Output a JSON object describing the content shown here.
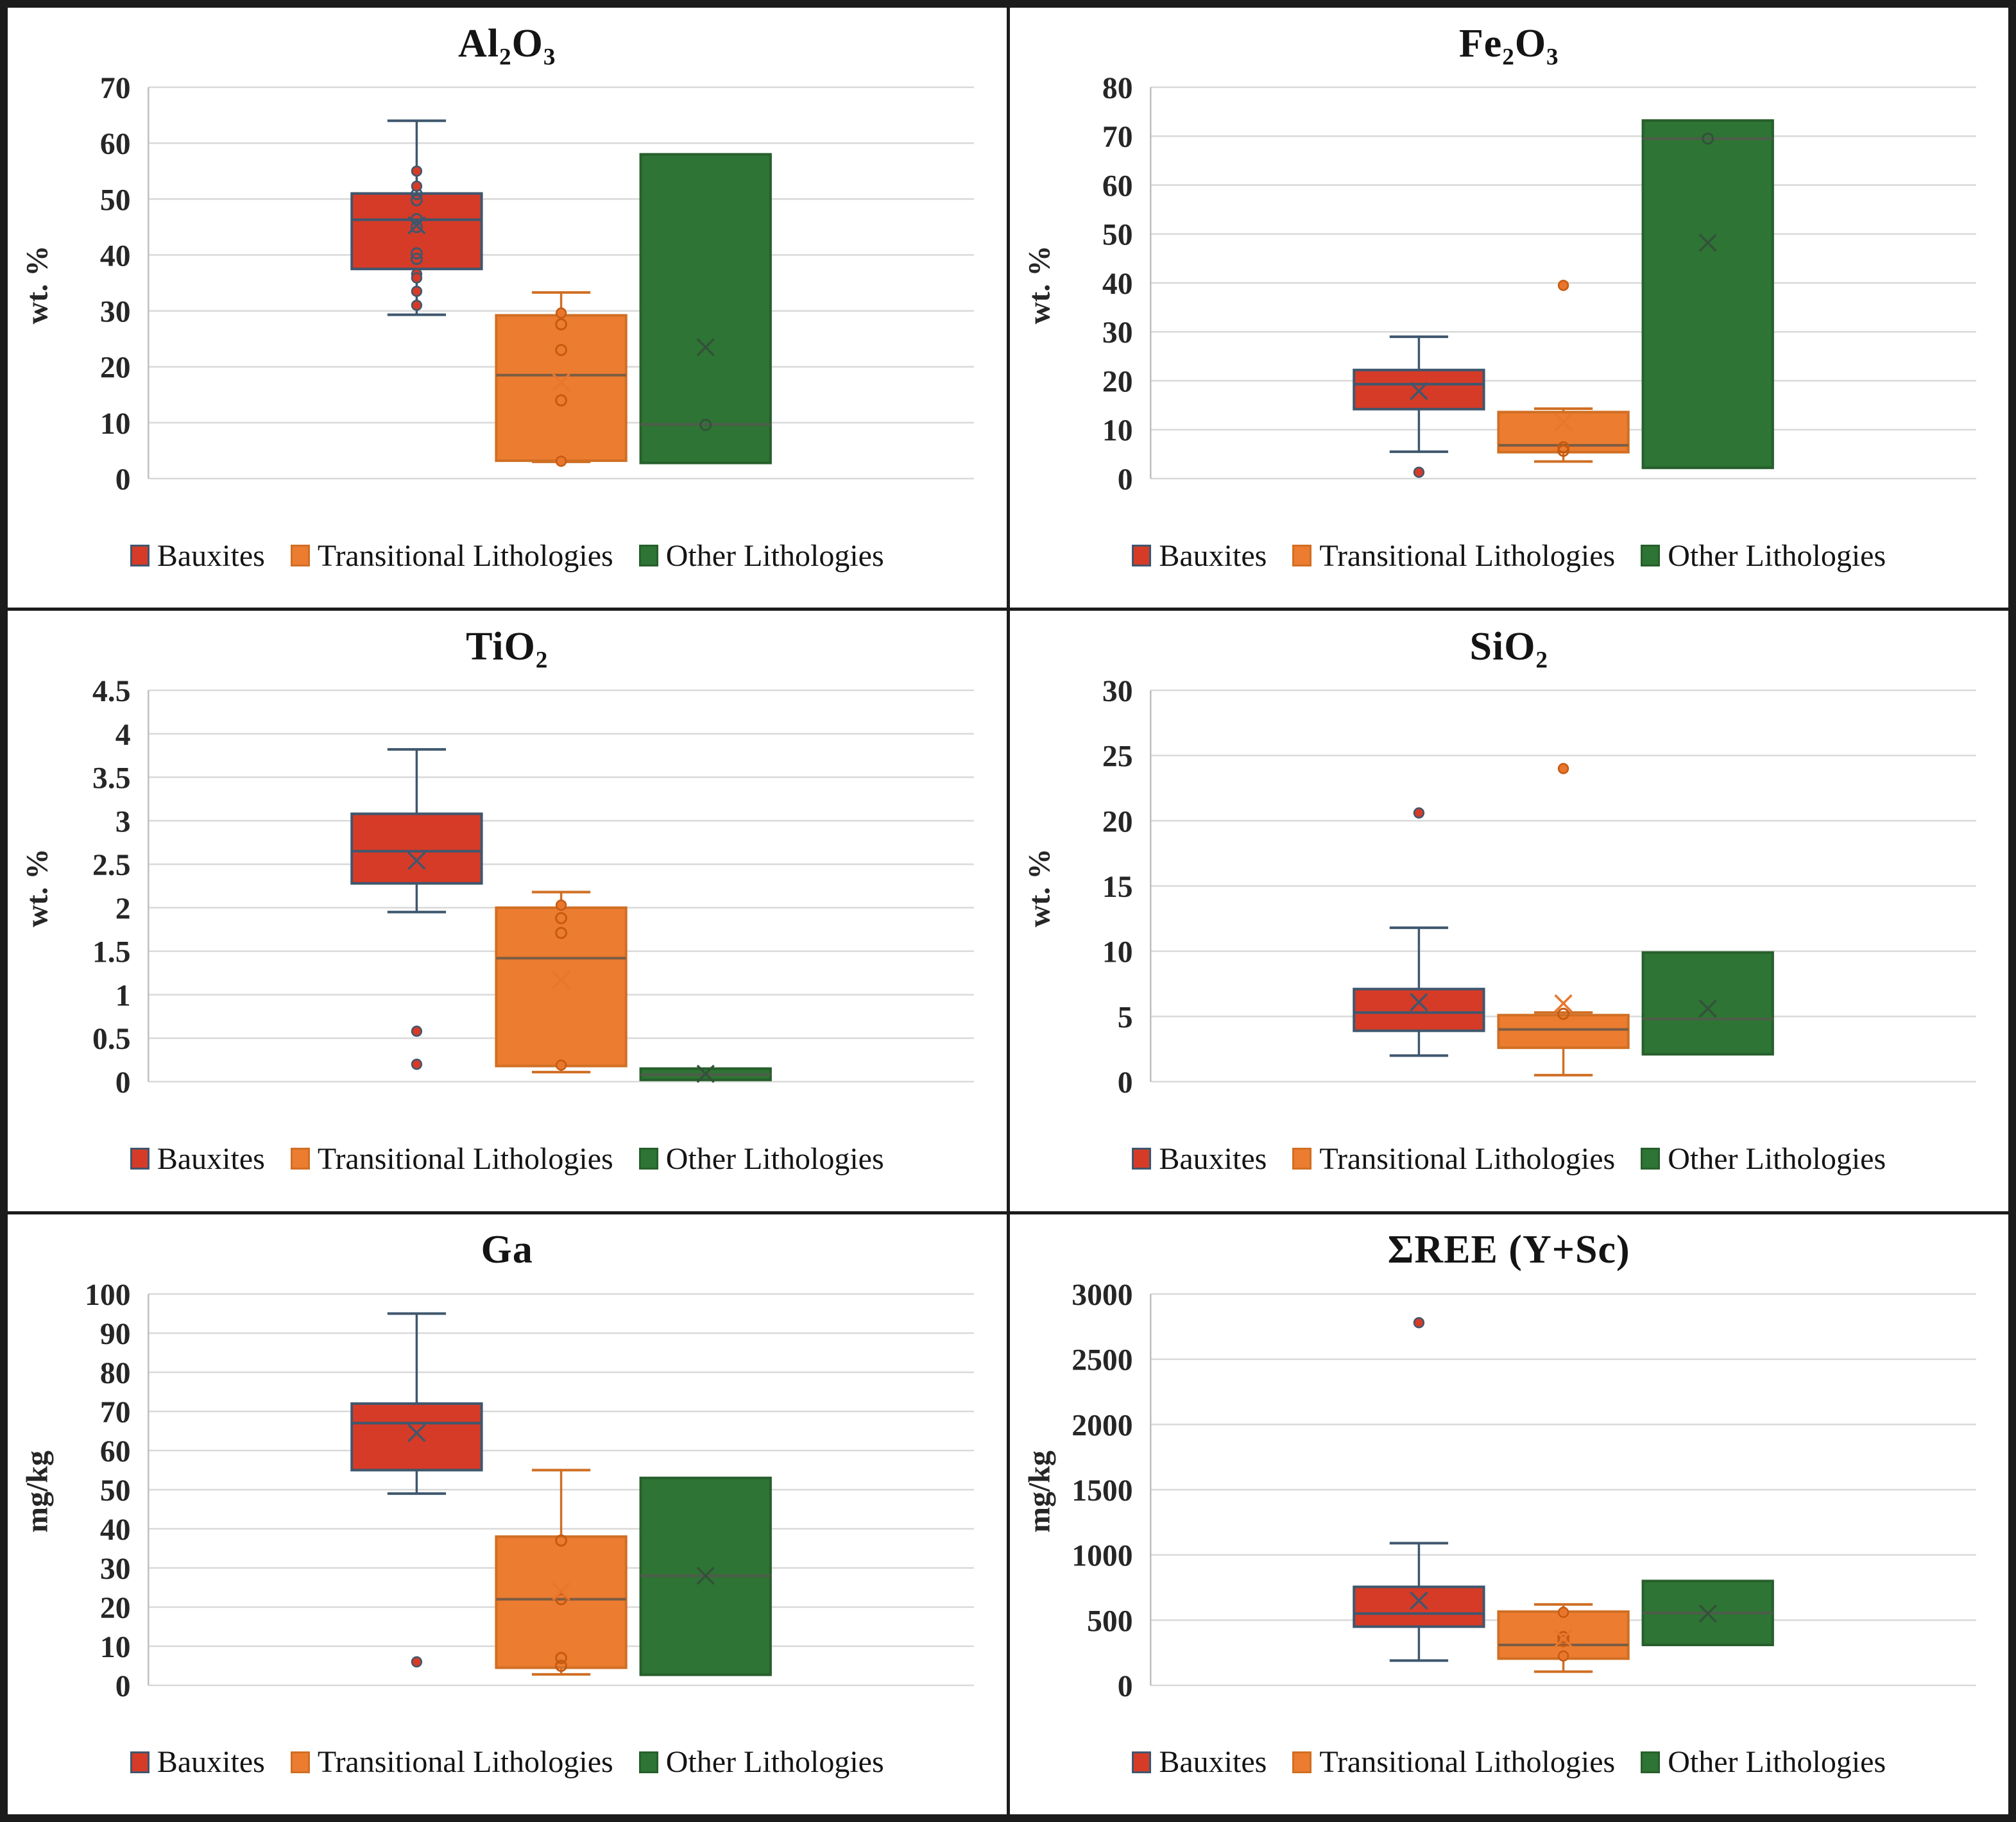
{
  "legend": {
    "items": [
      {
        "label": "Bauxites",
        "fill": "#d63b27",
        "edge": "#3f576e",
        "median": "#3f576e",
        "mean": "#3f576e",
        "point_fill": "#d63b27",
        "point_edge": "#3f576e"
      },
      {
        "label": "Transitional Lithologies",
        "fill": "#ec7c30",
        "edge": "#d06f24",
        "median": "#7a5c44",
        "mean": "#e8762c",
        "point_fill": "#e8762c",
        "point_edge": "#c55a11"
      },
      {
        "label": "Other Lithologies",
        "fill": "#2e7434",
        "edge": "#275f2c",
        "median": "#4f5b4b",
        "mean": "#33523a",
        "point_fill": "#2e7434",
        "point_edge": "#33523a"
      }
    ]
  },
  "style_colors": {
    "gridline": "#d9d9d9",
    "axis_line": "#bfbfbf",
    "tick_text": "#262626",
    "frame": "#1c1c1c"
  },
  "chart_data": [
    {
      "type": "box",
      "title": "Al₂O₃",
      "ylabel": "wt. %",
      "ylim": [
        0,
        70
      ],
      "ytick": 10,
      "grid": true,
      "legend_position": "bottom",
      "series": [
        {
          "name": "Bauxites",
          "whisker_low": 29.3,
          "q1": 37.5,
          "median": 46.3,
          "q3": 51,
          "whisker_high": 64,
          "mean": 45.3,
          "points_open": [
            50.9,
            49.8,
            46.4,
            45.0,
            40.3,
            39.3
          ],
          "points_filled": [
            55,
            52.3,
            36.6,
            35.9,
            33.5,
            31
          ]
        },
        {
          "name": "Transitional Lithologies",
          "whisker_low": 3.0,
          "q1": 3.2,
          "median": 18.5,
          "q3": 29.2,
          "whisker_high": 33.3,
          "mean": 17.2,
          "points_open": [
            27.6,
            23.0,
            14.0
          ],
          "points_filled": [
            29.6,
            3.1
          ]
        },
        {
          "name": "Other Lithologies",
          "whisker_low": 2.8,
          "q1": 2.8,
          "median": 9.7,
          "q3": 58,
          "whisker_high": 58,
          "mean": 23.5,
          "points_open": [
            9.6
          ],
          "points_filled": []
        }
      ]
    },
    {
      "type": "box",
      "title": "Fe₂O₃",
      "ylabel": "wt. %",
      "ylim": [
        0,
        80
      ],
      "ytick": 10,
      "grid": true,
      "legend_position": "bottom",
      "series": [
        {
          "name": "Bauxites",
          "whisker_low": 5.5,
          "q1": 14.2,
          "median": 19.3,
          "q3": 22.2,
          "whisker_high": 29,
          "mean": 17.9,
          "points_open": [],
          "points_filled": [
            1.3
          ]
        },
        {
          "name": "Transitional Lithologies",
          "whisker_low": 3.5,
          "q1": 5.4,
          "median": 6.8,
          "q3": 13.6,
          "whisker_high": 14.3,
          "mean": 11.5,
          "points_open": [
            6.4,
            5.7
          ],
          "points_filled": [
            39.5
          ]
        },
        {
          "name": "Other Lithologies",
          "whisker_low": 2.2,
          "q1": 2.2,
          "median": 69.5,
          "q3": 73.2,
          "whisker_high": 73.2,
          "mean": 48.2,
          "points_open": [
            69.5
          ],
          "points_filled": []
        }
      ]
    },
    {
      "type": "box",
      "title": "TiO₂",
      "ylabel": "wt. %",
      "ylim": [
        0,
        4.5
      ],
      "ytick": 0.5,
      "grid": true,
      "legend_position": "bottom",
      "series": [
        {
          "name": "Bauxites",
          "whisker_low": 1.95,
          "q1": 2.28,
          "median": 2.65,
          "q3": 3.08,
          "whisker_high": 3.82,
          "mean": 2.54,
          "points_open": [],
          "points_filled": [
            0.58,
            0.2
          ]
        },
        {
          "name": "Transitional Lithologies",
          "whisker_low": 0.11,
          "q1": 0.18,
          "median": 1.42,
          "q3": 2.0,
          "whisker_high": 2.18,
          "mean": 1.17,
          "points_open": [
            1.88,
            1.71
          ],
          "points_filled": [
            2.03,
            0.19
          ]
        },
        {
          "name": "Other Lithologies",
          "whisker_low": 0.02,
          "q1": 0.02,
          "median": 0.08,
          "q3": 0.15,
          "whisker_high": 0.15,
          "mean": 0.09,
          "points_open": [],
          "points_filled": []
        }
      ]
    },
    {
      "type": "box",
      "title": "SiO₂",
      "ylabel": "wt. %",
      "ylim": [
        0,
        30
      ],
      "ytick": 5,
      "grid": true,
      "legend_position": "bottom",
      "series": [
        {
          "name": "Bauxites",
          "whisker_low": 2.0,
          "q1": 3.9,
          "median": 5.3,
          "q3": 7.1,
          "whisker_high": 11.8,
          "mean": 6.1,
          "points_open": [],
          "points_filled": [
            20.6
          ]
        },
        {
          "name": "Transitional Lithologies",
          "whisker_low": 0.5,
          "q1": 2.6,
          "median": 4.0,
          "q3": 5.1,
          "whisker_high": 5.3,
          "mean": 6.0,
          "points_open": [
            5.2
          ],
          "points_filled": [
            24.0
          ]
        },
        {
          "name": "Other Lithologies",
          "whisker_low": 2.1,
          "q1": 2.1,
          "median": 4.8,
          "q3": 9.9,
          "whisker_high": 9.9,
          "mean": 5.6,
          "points_open": [],
          "points_filled": []
        }
      ]
    },
    {
      "type": "box",
      "title": "Ga",
      "ylabel": "mg/kg",
      "ylim": [
        0,
        100
      ],
      "ytick": 10,
      "grid": true,
      "legend_position": "bottom",
      "series": [
        {
          "name": "Bauxites",
          "whisker_low": 49,
          "q1": 55,
          "median": 67,
          "q3": 72,
          "whisker_high": 95,
          "mean": 64.5,
          "points_open": [],
          "points_filled": [
            6
          ]
        },
        {
          "name": "Transitional Lithologies",
          "whisker_low": 2.8,
          "q1": 4.5,
          "median": 22,
          "q3": 38,
          "whisker_high": 55,
          "mean": 24,
          "points_open": [
            37,
            22,
            7,
            5
          ],
          "points_filled": []
        },
        {
          "name": "Other Lithologies",
          "whisker_low": 2.7,
          "q1": 2.7,
          "median": 28,
          "q3": 53,
          "whisker_high": 53,
          "mean": 28,
          "points_open": [],
          "points_filled": []
        }
      ]
    },
    {
      "type": "box",
      "title": "ΣREE (Y+Sc)",
      "ylabel": "mg/kg",
      "ylim": [
        0,
        3000
      ],
      "ytick": 500,
      "grid": true,
      "legend_position": "bottom",
      "series": [
        {
          "name": "Bauxites",
          "whisker_low": 190,
          "q1": 450,
          "median": 550,
          "q3": 755,
          "whisker_high": 1090,
          "mean": 650,
          "points_open": [],
          "points_filled": [
            2780
          ]
        },
        {
          "name": "Transitional Lithologies",
          "whisker_low": 105,
          "q1": 205,
          "median": 310,
          "q3": 565,
          "whisker_high": 620,
          "mean": 360,
          "points_open": [
            370,
            340
          ],
          "points_filled": [
            560,
            225
          ]
        },
        {
          "name": "Other Lithologies",
          "whisker_low": 310,
          "q1": 310,
          "median": 555,
          "q3": 800,
          "whisker_high": 800,
          "mean": 550,
          "points_open": [],
          "points_filled": []
        }
      ]
    }
  ]
}
